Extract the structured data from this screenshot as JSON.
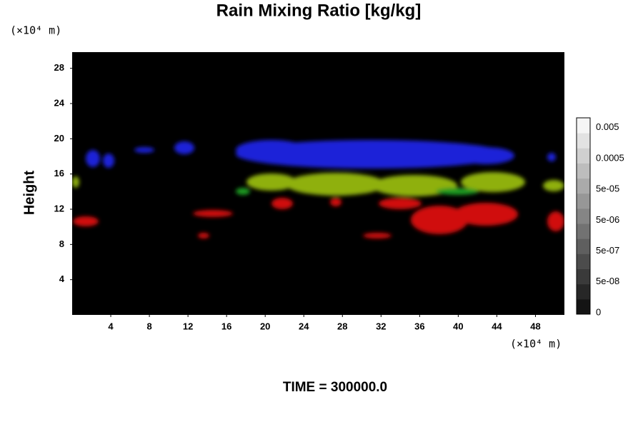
{
  "chart_data": {
    "type": "field",
    "title": "Rain Mixing Ratio [kg/kg]",
    "y_unit": "(×10⁴ m)",
    "x_unit": "(×10⁴ m)",
    "ylabel": "Height",
    "xlim": [
      0,
      51
    ],
    "ylim": [
      0,
      30
    ],
    "xticks": [
      4,
      8,
      12,
      16,
      20,
      24,
      28,
      32,
      36,
      40,
      44,
      48
    ],
    "yticks": [
      4,
      8,
      12,
      16,
      20,
      24,
      28
    ],
    "colorbar_labels": [
      "0",
      "5e-08",
      "5e-07",
      "5e-06",
      "5e-05",
      "0.0005",
      "0.005"
    ],
    "footer": "TIME = 300000.0"
  }
}
